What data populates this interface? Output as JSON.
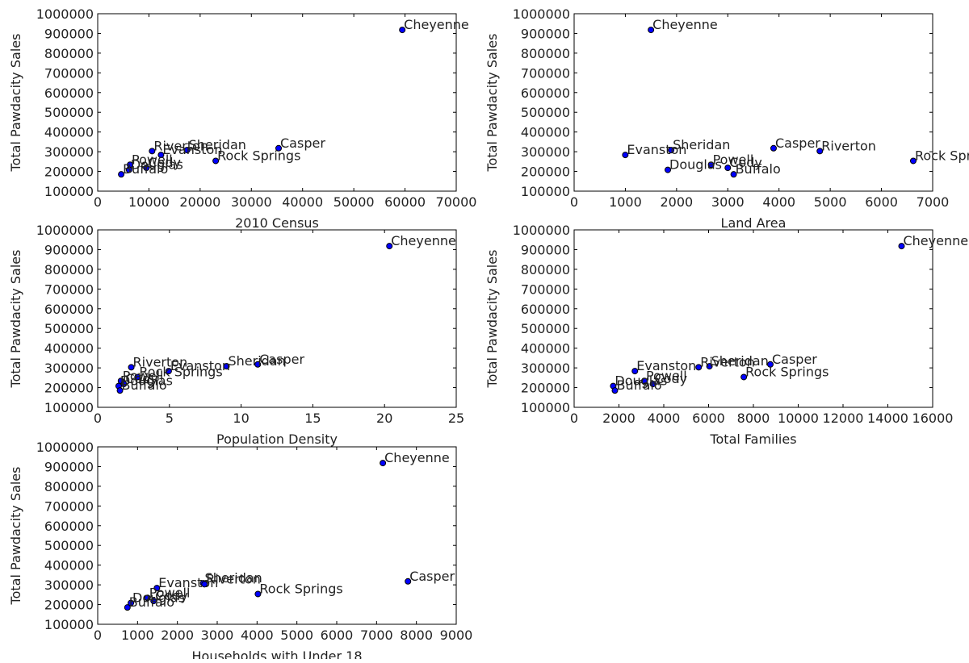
{
  "chart_data": [
    {
      "type": "scatter",
      "xlabel": "2010 Census",
      "ylabel": "Total Pawdacity Sales",
      "xlim": [
        0,
        70000
      ],
      "ylim": [
        100000,
        1000000
      ],
      "xticks": [
        "0",
        "10000",
        "20000",
        "30000",
        "40000",
        "50000",
        "60000",
        "70000"
      ],
      "yticks": [
        "100000",
        "200000",
        "300000",
        "400000",
        "500000",
        "600000",
        "700000",
        "800000",
        "900000",
        "1000000"
      ],
      "points": [
        {
          "label": "Cheyenne",
          "x": 59466,
          "y": 917892
        },
        {
          "label": "Casper",
          "x": 35316,
          "y": 317736
        },
        {
          "label": "Sheridan",
          "x": 17444,
          "y": 308232
        },
        {
          "label": "Evanston",
          "x": 12359,
          "y": 283824
        },
        {
          "label": "Riverton",
          "x": 10615,
          "y": 303264
        },
        {
          "label": "Rock Springs",
          "x": 23036,
          "y": 253584
        },
        {
          "label": "Powell",
          "x": 6314,
          "y": 233928
        },
        {
          "label": "Cody",
          "x": 9520,
          "y": 218376
        },
        {
          "label": "Douglas",
          "x": 6120,
          "y": 208008
        },
        {
          "label": "Buffalo",
          "x": 4585,
          "y": 185328
        }
      ]
    },
    {
      "type": "scatter",
      "xlabel": "Land Area",
      "ylabel": "Total Pawdacity Sales",
      "xlim": [
        0,
        7000
      ],
      "ylim": [
        100000,
        1000000
      ],
      "xticks": [
        "0",
        "1000",
        "2000",
        "3000",
        "4000",
        "5000",
        "6000",
        "7000"
      ],
      "yticks": [
        "100000",
        "200000",
        "300000",
        "400000",
        "500000",
        "600000",
        "700000",
        "800000",
        "900000",
        "1000000"
      ],
      "points": [
        {
          "label": "Cheyenne",
          "x": 1500,
          "y": 917892
        },
        {
          "label": "Casper",
          "x": 3894,
          "y": 317736
        },
        {
          "label": "Sheridan",
          "x": 1894,
          "y": 308232
        },
        {
          "label": "Evanston",
          "x": 999,
          "y": 283824
        },
        {
          "label": "Riverton",
          "x": 4797,
          "y": 303264
        },
        {
          "label": "Rock Springs",
          "x": 6621,
          "y": 253584
        },
        {
          "label": "Powell",
          "x": 2674,
          "y": 233928
        },
        {
          "label": "Cody",
          "x": 3000,
          "y": 218376
        },
        {
          "label": "Douglas",
          "x": 1829,
          "y": 208008
        },
        {
          "label": "Buffalo",
          "x": 3115,
          "y": 185328
        }
      ]
    },
    {
      "type": "scatter",
      "xlabel": "Population Density",
      "ylabel": "Total Pawdacity Sales",
      "xlim": [
        0,
        25
      ],
      "ylim": [
        100000,
        1000000
      ],
      "xticks": [
        "0",
        "5",
        "10",
        "15",
        "20",
        "25"
      ],
      "yticks": [
        "100000",
        "200000",
        "300000",
        "400000",
        "500000",
        "600000",
        "700000",
        "800000",
        "900000",
        "1000000"
      ],
      "points": [
        {
          "label": "Cheyenne",
          "x": 20.34,
          "y": 917892
        },
        {
          "label": "Casper",
          "x": 11.16,
          "y": 317736
        },
        {
          "label": "Sheridan",
          "x": 8.98,
          "y": 308232
        },
        {
          "label": "Evanston",
          "x": 4.95,
          "y": 283824
        },
        {
          "label": "Riverton",
          "x": 2.34,
          "y": 303264
        },
        {
          "label": "Rock Springs",
          "x": 2.78,
          "y": 253584
        },
        {
          "label": "Powell",
          "x": 1.62,
          "y": 233928
        },
        {
          "label": "Cody",
          "x": 1.82,
          "y": 218376
        },
        {
          "label": "Douglas",
          "x": 1.46,
          "y": 208008
        },
        {
          "label": "Buffalo",
          "x": 1.55,
          "y": 185328
        }
      ]
    },
    {
      "type": "scatter",
      "xlabel": "Total Families",
      "ylabel": "Total Pawdacity Sales",
      "xlim": [
        0,
        16000
      ],
      "ylim": [
        100000,
        1000000
      ],
      "xticks": [
        "0",
        "2000",
        "4000",
        "6000",
        "8000",
        "10000",
        "12000",
        "14000",
        "16000"
      ],
      "yticks": [
        "100000",
        "200000",
        "300000",
        "400000",
        "500000",
        "600000",
        "700000",
        "800000",
        "900000",
        "1000000"
      ],
      "points": [
        {
          "label": "Cheyenne",
          "x": 14612,
          "y": 917892
        },
        {
          "label": "Casper",
          "x": 8756,
          "y": 317736
        },
        {
          "label": "Sheridan",
          "x": 6039,
          "y": 308232
        },
        {
          "label": "Evanston",
          "x": 2712,
          "y": 283824
        },
        {
          "label": "Riverton",
          "x": 5557,
          "y": 303264
        },
        {
          "label": "Rock Springs",
          "x": 7573,
          "y": 253584
        },
        {
          "label": "Powell",
          "x": 3134,
          "y": 233928
        },
        {
          "label": "Cody",
          "x": 3516,
          "y": 218376
        },
        {
          "label": "Douglas",
          "x": 1744,
          "y": 208008
        },
        {
          "label": "Buffalo",
          "x": 1819,
          "y": 185328
        }
      ]
    },
    {
      "type": "scatter",
      "xlabel": "Households with Under 18",
      "ylabel": "Total Pawdacity Sales",
      "xlim": [
        0,
        9000
      ],
      "ylim": [
        100000,
        1000000
      ],
      "xticks": [
        "0",
        "1000",
        "2000",
        "3000",
        "4000",
        "5000",
        "6000",
        "7000",
        "8000",
        "9000"
      ],
      "yticks": [
        "100000",
        "200000",
        "300000",
        "400000",
        "500000",
        "600000",
        "700000",
        "800000",
        "900000",
        "1000000"
      ],
      "points": [
        {
          "label": "Cheyenne",
          "x": 7158,
          "y": 917892
        },
        {
          "label": "Casper",
          "x": 7788,
          "y": 317736
        },
        {
          "label": "Sheridan",
          "x": 2646,
          "y": 308232
        },
        {
          "label": "Evanston",
          "x": 1486,
          "y": 283824
        },
        {
          "label": "Riverton",
          "x": 2680,
          "y": 303264
        },
        {
          "label": "Rock Springs",
          "x": 4022,
          "y": 253584
        },
        {
          "label": "Powell",
          "x": 1251,
          "y": 233928
        },
        {
          "label": "Cody",
          "x": 1403,
          "y": 218376
        },
        {
          "label": "Douglas",
          "x": 832,
          "y": 208008
        },
        {
          "label": "Buffalo",
          "x": 746,
          "y": 185328
        }
      ]
    }
  ],
  "colors": {
    "marker_fill": "#0000ff",
    "marker_edge": "#000000",
    "axes": "#000000",
    "text": "#222222",
    "background": "#ffffff"
  }
}
